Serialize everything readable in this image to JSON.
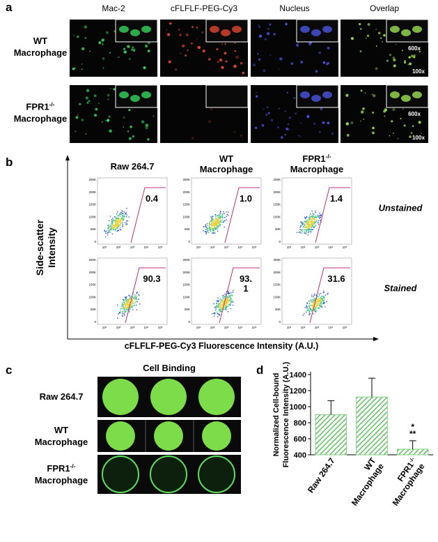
{
  "panel_a": {
    "label": "a",
    "columns": [
      "Mac-2",
      "cFLFLF-PEG-Cy3",
      "Nucleus",
      "Overlap"
    ],
    "rows": [
      "WT\nMacrophage",
      "FPR1-/-\nMacrophage"
    ],
    "inset_magnification": "600x",
    "magnification": "100x"
  },
  "panel_b": {
    "label": "b",
    "y_label": "Side-scatter\nIntensity",
    "x_label": "cFLFLF-PEG-Cy3 Fluorescence Intensity (A.U.)",
    "columns": [
      "Raw 264.7",
      "WT\nMacrophage",
      "FPR1-/-\nMacrophage"
    ],
    "rows": [
      "Unstained",
      "Stained"
    ],
    "gate_values": [
      [
        "0.4",
        "1.0",
        "1.4"
      ],
      [
        "90.3",
        "93.\n1",
        "31.6"
      ]
    ],
    "plot_yticks": [
      "250K",
      "200K",
      "150K",
      "100K",
      "50K",
      "0"
    ],
    "plot_xticks": [
      "10¹",
      "10²",
      "10³",
      "10⁴",
      "10⁵"
    ]
  },
  "panel_c": {
    "label": "c",
    "title": "Cell Binding",
    "rows": [
      "Raw 264.7",
      "WT\nMacrophage",
      "FPR1-/-\nMacrophage"
    ]
  },
  "panel_d": {
    "label": "d"
  },
  "chart_data": {
    "type": "bar",
    "y_label": "Normalized Cell-bound\nFluorescence Intensity (A.U.)",
    "categories": [
      "Raw 264.7",
      "WT\nMacrophage",
      "FPR1-/-\nMacrophage"
    ],
    "values": [
      900,
      1120,
      470
    ],
    "errors": [
      175,
      235,
      105
    ],
    "color": "#7fcf7f",
    "ylim": [
      400,
      1400
    ],
    "yticks": [
      400,
      600,
      800,
      1000,
      1200,
      1400
    ],
    "annotations": [
      "*",
      "**"
    ]
  }
}
